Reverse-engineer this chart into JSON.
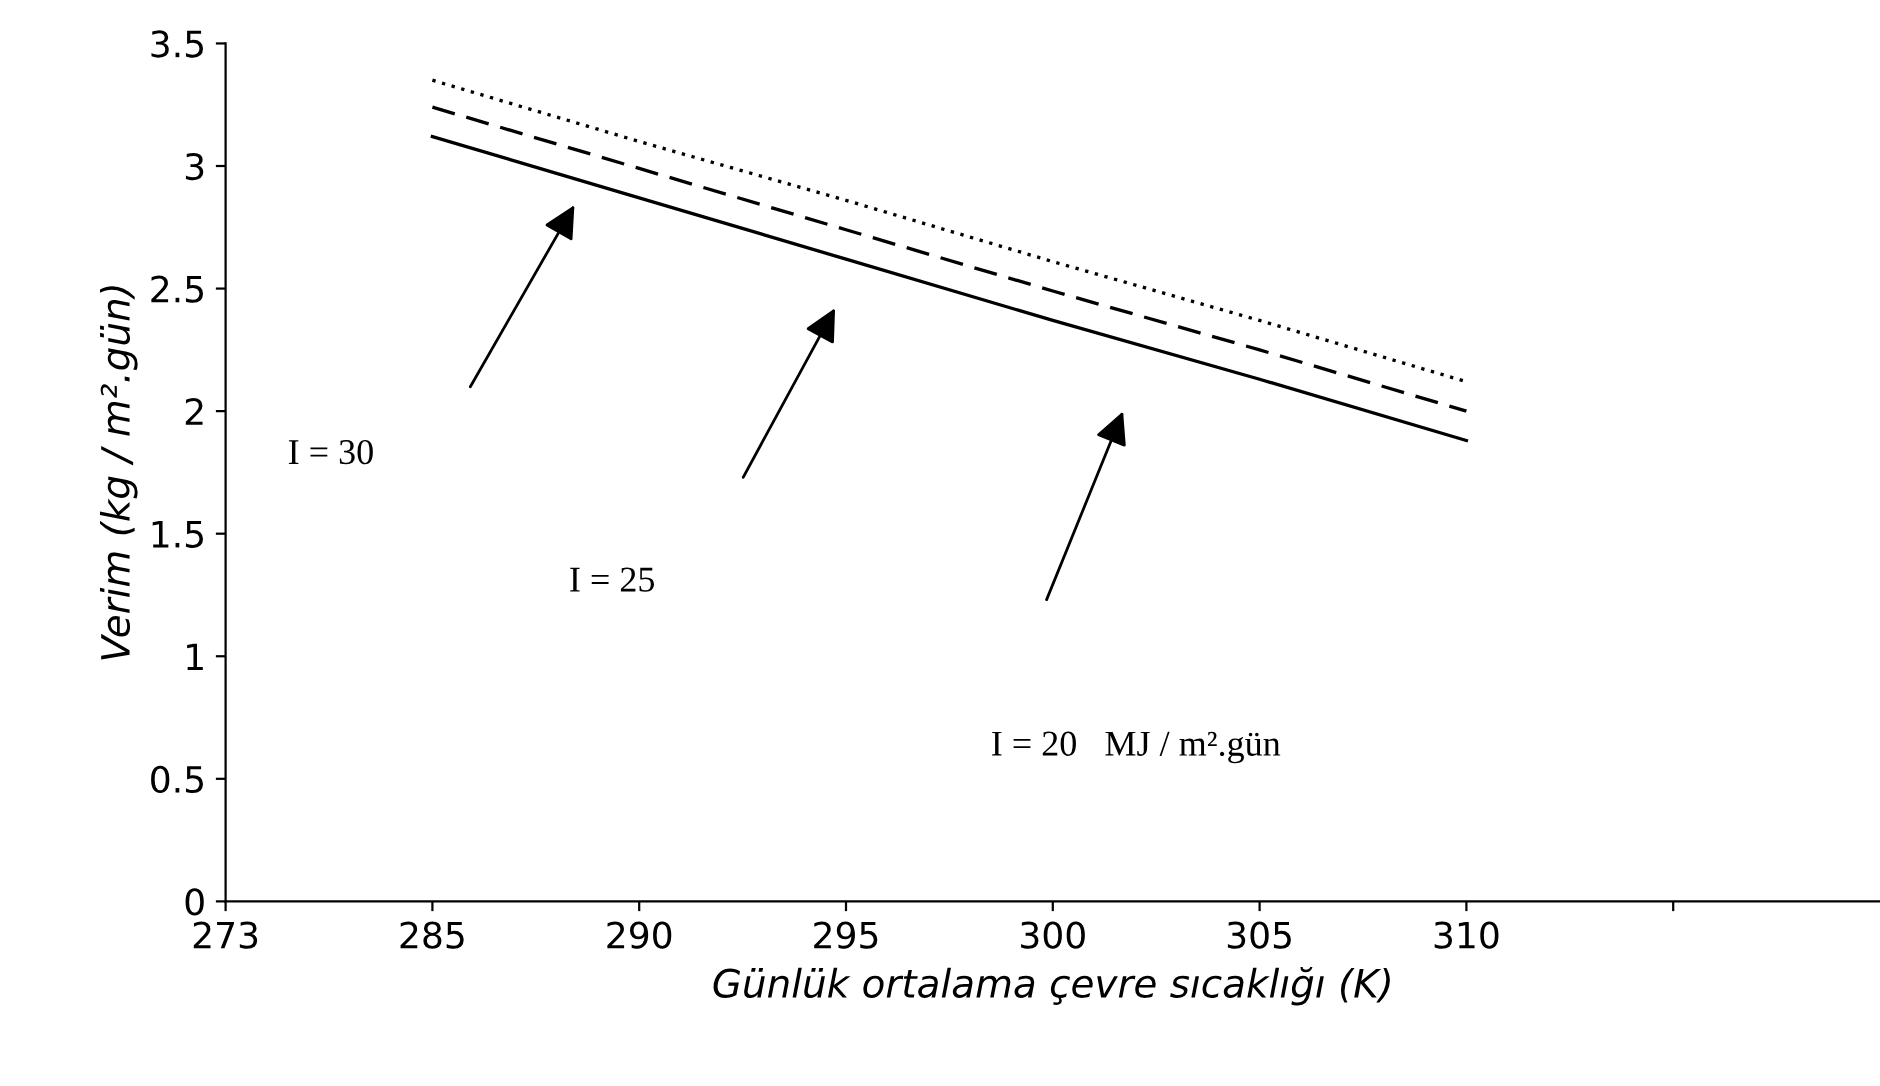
{
  "chart_data": {
    "type": "line",
    "xlabel": "Günlük ortalama çevre sıcaklığı (K)",
    "ylabel": "Verim (kg / m².gün)",
    "categories": [
      "273",
      "285",
      "290",
      "295",
      "300",
      "305",
      "310",
      null
    ],
    "series": [
      {
        "color": "#000000",
        "line_style": "dotted",
        "values": [
          null,
          3.35,
          3.1,
          2.86,
          2.61,
          2.37,
          2.12,
          null
        ]
      },
      {
        "color": "#000000",
        "line_style": "dashed",
        "values": [
          null,
          3.24,
          2.99,
          2.74,
          2.49,
          2.25,
          2.0,
          null
        ]
      },
      {
        "color": "#000000",
        "line_style": "solid",
        "values": [
          null,
          3.12,
          2.87,
          2.62,
          2.37,
          2.13,
          1.88,
          null
        ]
      }
    ],
    "annotations": [
      "I = 30",
      "I = 25",
      "I = 20   MJ / m².gün"
    ],
    "ylim": [
      0,
      3.5
    ],
    "yticks": [
      0,
      0.5,
      1,
      1.5,
      2,
      2.5,
      3,
      3.5
    ],
    "grid": false,
    "legend": false,
    "marker": "none"
  }
}
